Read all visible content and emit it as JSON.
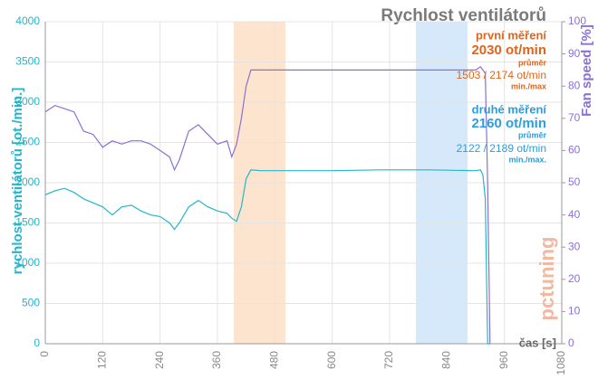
{
  "chart_data": {
    "type": "line",
    "title": "Rychlost ventilátorů",
    "y_label": "rychlost ventilátorů [ot./min.]",
    "y2_label": "Fan speed [%]",
    "x_label": "čas [s]",
    "watermark": "pctuning",
    "annotations": [
      {
        "text": "první měření",
        "color": "#e0641a"
      },
      {
        "text": "2030 ot/min",
        "color": "#e0641a"
      },
      {
        "text": "průměr",
        "color": "#e0641a"
      },
      {
        "text": "1503 / 2174 ot/min",
        "color": "#e0641a"
      },
      {
        "text": "min./max",
        "color": "#e0641a"
      },
      {
        "text": "druhé měření",
        "color": "#2b9ee0"
      },
      {
        "text": "2160 ot/min",
        "color": "#2b9ee0"
      },
      {
        "text": "průměr",
        "color": "#2b9ee0"
      },
      {
        "text": "2122 / 2189 ot/min",
        "color": "#2b9ee0"
      },
      {
        "text": "min./max.",
        "color": "#2b9ee0"
      }
    ],
    "highlights": [
      {
        "range": [
          394,
          502
        ],
        "color": "#fde4cf"
      },
      {
        "range": [
          775,
          883
        ],
        "color": "#d6e9fb"
      }
    ],
    "x": [
      0,
      20,
      40,
      60,
      80,
      100,
      120,
      140,
      160,
      180,
      200,
      220,
      240,
      260,
      270,
      280,
      300,
      320,
      340,
      360,
      380,
      390,
      400,
      410,
      420,
      430,
      450,
      500,
      600,
      700,
      800,
      900,
      910,
      915,
      920,
      925,
      930
    ],
    "series": [
      {
        "color": "#26b6c9",
        "values": [
          1850,
          1900,
          1930,
          1880,
          1800,
          1750,
          1700,
          1600,
          1700,
          1720,
          1650,
          1600,
          1580,
          1500,
          1420,
          1500,
          1700,
          1780,
          1700,
          1650,
          1620,
          1560,
          1520,
          1700,
          2050,
          2160,
          2150,
          2150,
          2150,
          2160,
          2160,
          2150,
          2160,
          2100,
          1800,
          0,
          0
        ]
      },
      {
        "color": "#8b70d2",
        "axis": "y2",
        "values": [
          72,
          74,
          73,
          72,
          66,
          65,
          61,
          63,
          62,
          63,
          63,
          62,
          60,
          58,
          54,
          57,
          66,
          68,
          65,
          62,
          63,
          58,
          62,
          70,
          80,
          85,
          85,
          85,
          85,
          85,
          85,
          85,
          86,
          85,
          84,
          50,
          0
        ]
      }
    ],
    "xlim": [
      0,
      1080
    ],
    "xticks": [
      0,
      120,
      240,
      360,
      480,
      600,
      720,
      840,
      960,
      1080
    ],
    "ylim": [
      0,
      4000
    ],
    "yticks": [
      0,
      500,
      1000,
      1500,
      2000,
      2500,
      3000,
      3500,
      4000
    ],
    "y2lim": [
      0,
      100
    ],
    "y2ticks": [
      0,
      10,
      20,
      30,
      40,
      50,
      60,
      70,
      80,
      90,
      100
    ],
    "grid": true
  }
}
